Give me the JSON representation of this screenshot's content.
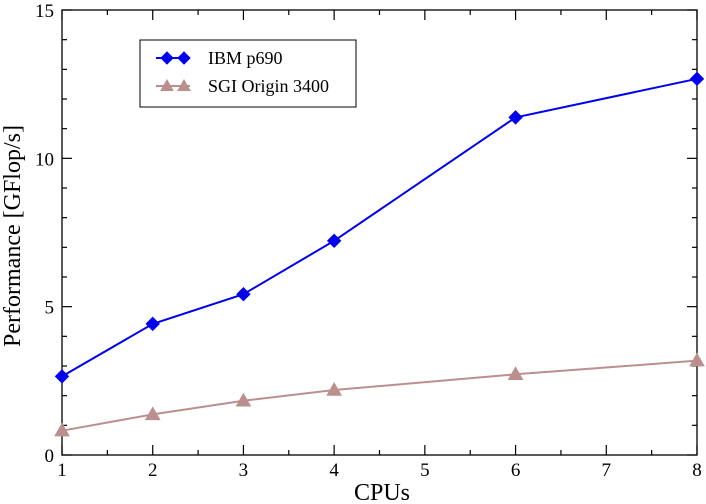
{
  "chart_data": {
    "type": "line",
    "title": "",
    "xlabel": "CPUs",
    "ylabel": "Performance [GFlop/s]",
    "xlim": [
      1,
      8
    ],
    "ylim": [
      0,
      15
    ],
    "xticks": [
      1,
      2,
      3,
      4,
      5,
      6,
      7,
      8
    ],
    "yticks": [
      0,
      5,
      10,
      15
    ],
    "legend_position": "top-left",
    "series": [
      {
        "name": "IBM p690",
        "color": "#0000ee",
        "marker": "diamond",
        "x": [
          1,
          2,
          3,
          4,
          6,
          8
        ],
        "values": [
          2.65,
          4.42,
          5.42,
          7.22,
          11.38,
          12.68
        ]
      },
      {
        "name": "SGI Origin 3400",
        "color": "#bc8f8f",
        "marker": "triangle",
        "x": [
          1,
          2,
          3,
          4,
          6,
          8
        ],
        "values": [
          0.82,
          1.37,
          1.83,
          2.19,
          2.72,
          3.18
        ]
      }
    ]
  }
}
